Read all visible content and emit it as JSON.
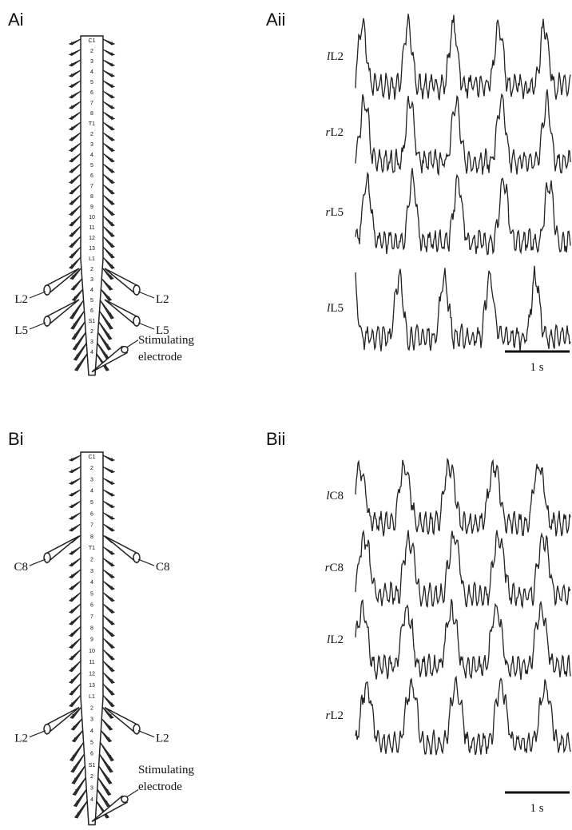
{
  "panel_a": {
    "diagram_label": "Ai",
    "traces_label": "Aii",
    "segments": [
      "C1",
      "2",
      "3",
      "4",
      "5",
      "6",
      "7",
      "8",
      "T1",
      "2",
      "3",
      "4",
      "5",
      "6",
      "7",
      "8",
      "9",
      "10",
      "11",
      "12",
      "13",
      "L1",
      "2",
      "3",
      "4",
      "5",
      "6",
      "S1",
      "2",
      "3",
      "4"
    ],
    "electrodes": [
      {
        "left": "L2",
        "right": "L2"
      },
      {
        "left": "L5",
        "right": "L5"
      }
    ],
    "stimulating_label": [
      "Stimulating",
      "electrode"
    ],
    "traces": [
      {
        "side": "l",
        "name": "L2"
      },
      {
        "side": "r",
        "name": "L2"
      },
      {
        "side": "r",
        "name": "L5"
      },
      {
        "side": "l",
        "name": "L5"
      }
    ],
    "scale_bar": "1 s"
  },
  "panel_b": {
    "diagram_label": "Bi",
    "traces_label": "Bii",
    "segments": [
      "C1",
      "2",
      "3",
      "4",
      "5",
      "6",
      "7",
      "8",
      "T1",
      "2",
      "3",
      "4",
      "5",
      "6",
      "7",
      "8",
      "9",
      "10",
      "11",
      "12",
      "13",
      "L1",
      "2",
      "3",
      "4",
      "5",
      "6",
      "S1",
      "2",
      "3",
      "4"
    ],
    "electrodes": [
      {
        "left": "C8",
        "right": "C8"
      },
      {
        "left": "L2",
        "right": "L2"
      }
    ],
    "stimulating_label": [
      "Stimulating",
      "electrode"
    ],
    "traces": [
      {
        "side": "l",
        "name": "C8"
      },
      {
        "side": "r",
        "name": "C8"
      },
      {
        "side": "l",
        "name": "L2"
      },
      {
        "side": "r",
        "name": "L2"
      }
    ],
    "scale_bar": "1 s"
  }
}
